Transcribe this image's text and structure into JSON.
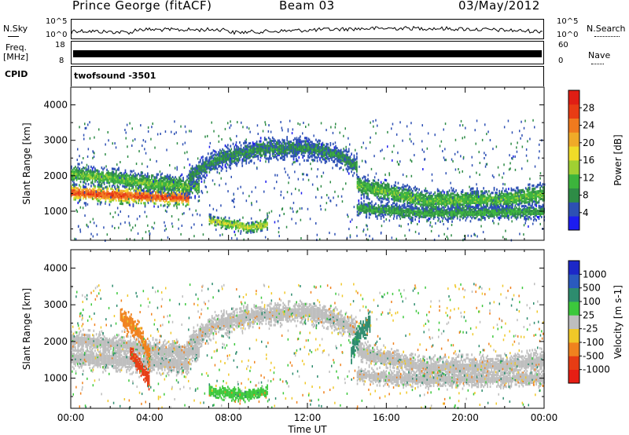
{
  "header": {
    "station": "Prince George (fitACF)",
    "beam": "Beam 03",
    "date": "03/May/2012"
  },
  "side_labels": {
    "nsky": "N.Sky",
    "freq_line1": "Freq.",
    "freq_line2": "[MHz]",
    "cpid": "CPID",
    "nsearch": "N.Search",
    "nave": "Nave"
  },
  "strip_ticks": {
    "noise_left_top": "10^5",
    "noise_left_bottom": "10^0",
    "noise_right_top": "10^5",
    "noise_right_bottom": "10^0",
    "freq_left_top": "18",
    "freq_left_bottom": "8",
    "nave_right_top": "60",
    "nave_right_bottom": "0"
  },
  "cpid_value": "twofsound  -3501",
  "chart_data": [
    {
      "type": "heatmap",
      "name": "power-panel",
      "ylabel": "Slant Range [km]",
      "ylim": [
        180,
        4500
      ],
      "y_ticks": [
        1000,
        2000,
        3000,
        4000
      ],
      "xlim": [
        0,
        24
      ],
      "colorbar": {
        "label": "Power [dB]",
        "range": [
          0,
          32
        ],
        "tick_values": [
          4,
          8,
          12,
          16,
          20,
          24,
          28
        ],
        "tick_labels": [
          "4",
          "8",
          "12",
          "16",
          "20",
          "24",
          "28"
        ],
        "colors": [
          "#1c1cf0",
          "#2d50b4",
          "#2e8c46",
          "#3cb43c",
          "#a0d032",
          "#f0dc28",
          "#f0aa28",
          "#f07a1e",
          "#e83c14",
          "#e01e14"
        ]
      },
      "bands": [
        {
          "t": [
            0.0,
            3.0,
            6.0
          ],
          "r": [
            1550,
            1450,
            1400
          ],
          "w": 180,
          "v": 27
        },
        {
          "t": [
            0.0,
            2.0,
            4.0,
            6.5
          ],
          "r": [
            2050,
            1950,
            1800,
            1700
          ],
          "w": 200,
          "v": 12
        },
        {
          "t": [
            6.0,
            7.5,
            9.5,
            12.0,
            13.5,
            14.5
          ],
          "r": [
            2000,
            2500,
            2750,
            2800,
            2600,
            2300
          ],
          "w": 220,
          "v": 8
        },
        {
          "t": [
            14.5,
            18.0,
            22.0,
            24.0
          ],
          "r": [
            1750,
            1300,
            1350,
            1500
          ],
          "w": 220,
          "v": 12
        },
        {
          "t": [
            14.5,
            18.0,
            24.0
          ],
          "r": [
            1100,
            950,
            1000
          ],
          "w": 150,
          "v": 10
        },
        {
          "t": [
            7.0,
            9.0,
            10.0
          ],
          "r": [
            750,
            550,
            650
          ],
          "w": 120,
          "v": 16
        }
      ]
    },
    {
      "type": "heatmap",
      "name": "velocity-panel",
      "ylabel": "Slant Range [km]",
      "xlabel": "Time UT",
      "ylim": [
        180,
        4500
      ],
      "y_ticks": [
        1000,
        2000,
        3000,
        4000
      ],
      "xlim": [
        0,
        24
      ],
      "x_ticks": [
        0,
        4,
        8,
        12,
        16,
        20,
        24
      ],
      "x_tick_labels": [
        "00:00",
        "04:00",
        "08:00",
        "12:00",
        "16:00",
        "20:00",
        "00:00"
      ],
      "colorbar": {
        "label": "Velocity [m s-1]",
        "tick_labels": [
          "1000",
          "500",
          "100",
          "25",
          "-25",
          "-100",
          "-500",
          "-1000"
        ],
        "colors": [
          "#1c28c8",
          "#2a5abe",
          "#2d8c6e",
          "#3cc83c",
          "#bebebe",
          "#f0c828",
          "#f0821e",
          "#e63c14",
          "#e61e14"
        ]
      },
      "bands": [
        {
          "t": [
            0.0,
            3.0,
            6.0
          ],
          "r": [
            1550,
            1450,
            1400
          ],
          "w": 200,
          "v": 0
        },
        {
          "t": [
            0.0,
            2.0,
            4.0,
            6.5
          ],
          "r": [
            2050,
            1950,
            1800,
            1700
          ],
          "w": 200,
          "v": 0
        },
        {
          "t": [
            6.0,
            7.5,
            9.5,
            12.0,
            13.5,
            14.5
          ],
          "r": [
            2000,
            2500,
            2750,
            2800,
            2600,
            2300
          ],
          "w": 220,
          "v": 0
        },
        {
          "t": [
            14.5,
            18.0,
            22.0,
            24.0
          ],
          "r": [
            1750,
            1300,
            1350,
            1500
          ],
          "w": 220,
          "v": 0
        },
        {
          "t": [
            14.5,
            18.0,
            24.0
          ],
          "r": [
            1100,
            950,
            1000
          ],
          "w": 150,
          "v": 0
        },
        {
          "t": [
            2.5,
            3.5,
            4.0
          ],
          "r": [
            2700,
            2200,
            1500
          ],
          "w": 200,
          "v": -200
        },
        {
          "t": [
            3.0,
            3.5,
            4.0
          ],
          "r": [
            1700,
            1300,
            900
          ],
          "w": 150,
          "v": -700
        },
        {
          "t": [
            7.0,
            9.0,
            10.0
          ],
          "r": [
            650,
            550,
            650
          ],
          "w": 120,
          "v": 60
        },
        {
          "t": [
            14.2,
            14.6,
            15.2
          ],
          "r": [
            1700,
            2200,
            2600
          ],
          "w": 200,
          "v": 300
        }
      ]
    }
  ]
}
